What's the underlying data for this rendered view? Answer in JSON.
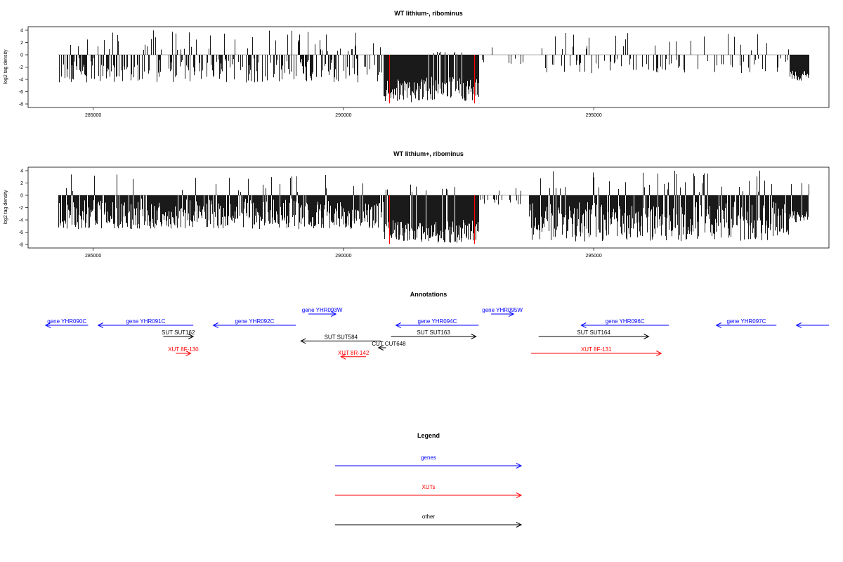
{
  "colors": {
    "gene": "#0000ff",
    "xut": "#ff0000",
    "other": "#000000",
    "bar": "#000000",
    "marker": "#ff0000",
    "baseline": "#999999"
  },
  "chart_data": [
    {
      "type": "bar",
      "title": "WT lithium-, ribominus",
      "ylabel": "log2 tag density",
      "xlim": [
        283700,
        299700
      ],
      "ylim": [
        -8,
        4
      ],
      "xticks": [
        285000,
        290000,
        295000
      ],
      "yticks": [
        4,
        2,
        0,
        -2,
        -4,
        -6,
        -8
      ],
      "red_markers_x": [
        290920,
        292620
      ],
      "data_range_x": [
        284300,
        299300
      ],
      "regions": [
        {
          "x": [
            284300,
            290800
          ],
          "density": 0.55,
          "down": [
            -0.5,
            -4.5
          ],
          "up": [
            0.5,
            4.0
          ]
        },
        {
          "x": [
            290800,
            291400
          ],
          "density": 1.0,
          "down": [
            -4.0,
            -7.8
          ],
          "up": [
            0,
            0
          ]
        },
        {
          "x": [
            291400,
            292700
          ],
          "density": 1.0,
          "down": [
            -3.5,
            -7.5
          ],
          "up": [
            0,
            0.5
          ]
        },
        {
          "x": [
            292700,
            293700
          ],
          "density": 0.15,
          "down": [
            -0.5,
            -1.5
          ],
          "up": [
            0.5,
            1.5
          ]
        },
        {
          "x": [
            293700,
            298900
          ],
          "density": 0.25,
          "down": [
            -0.5,
            -3.0
          ],
          "up": [
            0.5,
            3.8
          ]
        },
        {
          "x": [
            298900,
            299300
          ],
          "density": 1.0,
          "down": [
            -2.5,
            -4.2
          ],
          "up": [
            0,
            0
          ]
        }
      ]
    },
    {
      "type": "bar",
      "title": "WT lithium+, ribominus",
      "ylabel": "log2 tag density",
      "xlim": [
        283700,
        299700
      ],
      "ylim": [
        -8,
        4
      ],
      "xticks": [
        285000,
        290000,
        295000
      ],
      "yticks": [
        4,
        2,
        0,
        -2,
        -4,
        -6,
        -8
      ],
      "red_markers_x": [
        290920,
        292620
      ],
      "data_range_x": [
        284300,
        299300
      ],
      "regions": [
        {
          "x": [
            284300,
            290800
          ],
          "density": 0.95,
          "down": [
            -0.5,
            -5.5
          ],
          "up": [
            0.5,
            3.5
          ]
        },
        {
          "x": [
            290800,
            291400
          ],
          "density": 1.0,
          "down": [
            -4.0,
            -7.5
          ],
          "up": [
            0.5,
            2.0
          ]
        },
        {
          "x": [
            291400,
            292700
          ],
          "density": 1.0,
          "down": [
            -4.0,
            -7.8
          ],
          "up": [
            0.5,
            1.5
          ]
        },
        {
          "x": [
            292700,
            293700
          ],
          "density": 0.2,
          "down": [
            -0.5,
            -1.5
          ],
          "up": [
            0.5,
            2.0
          ]
        },
        {
          "x": [
            293700,
            298900
          ],
          "density": 0.95,
          "down": [
            -1.0,
            -7.5
          ],
          "up": [
            0.5,
            4.0
          ]
        },
        {
          "x": [
            298900,
            299300
          ],
          "density": 1.0,
          "down": [
            -2.5,
            -4.5
          ],
          "up": [
            0.5,
            3.0
          ]
        }
      ]
    }
  ],
  "annotations": {
    "title": "Annotations",
    "features": [
      {
        "label": "gene YHR090C",
        "kind": "gene",
        "dir": "left",
        "x1": 284050,
        "x2": 284900,
        "row": 0
      },
      {
        "label": "gene YHR091C",
        "kind": "gene",
        "dir": "left",
        "x1": 285100,
        "x2": 287000,
        "row": 0
      },
      {
        "label": "gene YHR092C",
        "kind": "gene",
        "dir": "left",
        "x1": 287400,
        "x2": 289050,
        "row": 0
      },
      {
        "label": "gene YHR093W",
        "kind": "gene",
        "dir": "right",
        "x1": 289300,
        "x2": 289850,
        "row": -1
      },
      {
        "label": "gene YHR094C",
        "kind": "gene",
        "dir": "left",
        "x1": 291050,
        "x2": 292700,
        "row": 0
      },
      {
        "label": "gene YHR095W",
        "kind": "gene",
        "dir": "right",
        "x1": 292950,
        "x2": 293400,
        "row": -1
      },
      {
        "label": "gene YHR096C",
        "kind": "gene",
        "dir": "left",
        "x1": 294750,
        "x2": 296500,
        "row": 0
      },
      {
        "label": "gene YHR097C",
        "kind": "gene",
        "dir": "left",
        "x1": 297450,
        "x2": 298650,
        "row": 0
      },
      {
        "label": "",
        "kind": "gene",
        "dir": "left",
        "x1": 299050,
        "x2": 299700,
        "row": 0
      },
      {
        "label": "SUT SUT162",
        "kind": "other",
        "dir": "right",
        "x1": 286400,
        "x2": 287000,
        "row": 1
      },
      {
        "label": "SUT SUT584",
        "kind": "other",
        "dir": "left",
        "x1": 289150,
        "x2": 290750,
        "row": 1.4
      },
      {
        "label": "SUT SUT163",
        "kind": "other",
        "dir": "right",
        "x1": 290950,
        "x2": 292650,
        "row": 1
      },
      {
        "label": "SUT SUT164",
        "kind": "other",
        "dir": "right",
        "x1": 293900,
        "x2": 296100,
        "row": 1
      },
      {
        "label": "CUT CUT648",
        "kind": "other",
        "dir": "left",
        "x1": 290700,
        "x2": 290850,
        "row": 2
      },
      {
        "label": "XUT 8F-130",
        "kind": "xut",
        "dir": "right",
        "x1": 286650,
        "x2": 286950,
        "row": 2.5
      },
      {
        "label": "XUT 8R-142",
        "kind": "xut",
        "dir": "left",
        "x1": 289950,
        "x2": 290450,
        "row": 2.8
      },
      {
        "label": "XUT 8F-131",
        "kind": "xut",
        "dir": "right",
        "x1": 293750,
        "x2": 296350,
        "row": 2.5
      }
    ]
  },
  "legend": {
    "title": "Legend",
    "items": [
      {
        "label": "genes",
        "kind": "gene"
      },
      {
        "label": "XUTs",
        "kind": "xut"
      },
      {
        "label": "other",
        "kind": "other"
      }
    ]
  }
}
